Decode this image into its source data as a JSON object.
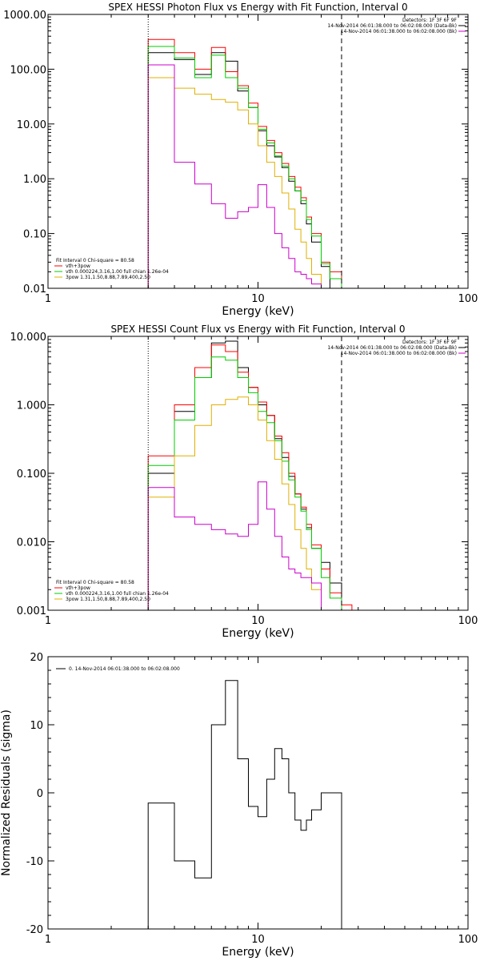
{
  "chart_data": [
    {
      "type": "line",
      "title": "SPEX HESSI Photon Flux vs Energy with Fit Function, Interval 0",
      "xlabel": "Energy (keV)",
      "ylabel": "",
      "xscale": "log",
      "yscale": "log",
      "xlim": [
        1,
        100
      ],
      "ylim": [
        0.01,
        1000
      ],
      "x_ticks": [
        "1",
        "10",
        "100"
      ],
      "y_ticks": [
        "0.01",
        "0.10",
        "1.00",
        "10.00",
        "100.00",
        "1000.00"
      ],
      "vlines": [
        {
          "x": 3,
          "style": "dotted"
        },
        {
          "x": 25,
          "style": "dashed"
        }
      ],
      "legend_header": [
        "Detectors: 1F 3F 6F 9F",
        "14-Nov-2014 06:01:38.000 to 06:02:08.000 (Data-Bk)",
        "14-Nov-2014 06:01:38.000 to 06:02:08.000 (Bk)"
      ],
      "legend_header_colors": [
        "#000000",
        "#000000",
        "#cc00cc"
      ],
      "legend_fit": [
        "Fit Interval 0   Chi-square = 80.58",
        "vth+3pow",
        "vth 0.000224,3.16,1.00   full chian 1.26e-04",
        "3pow 1.31,1.50,8.88,7.89,400,2.50"
      ],
      "legend_fit_colors": [
        "#000000",
        "#ff0000",
        "#00cc00",
        "#e0b000"
      ],
      "edges": [
        3,
        4,
        5,
        6,
        7,
        8,
        9,
        10,
        11,
        12,
        13,
        14,
        15,
        16,
        17,
        18,
        20,
        22,
        25,
        28
      ],
      "series": [
        {
          "color": "#000000",
          "values": [
            200,
            150,
            80,
            200,
            140,
            40,
            20,
            7.5,
            4,
            2.5,
            1.6,
            0.9,
            0.6,
            0.35,
            0.15,
            0.07,
            0.025,
            null,
            null
          ]
        },
        {
          "color": "#ff0000",
          "values": [
            350,
            200,
            100,
            250,
            90,
            50,
            24,
            9,
            5,
            3,
            1.9,
            1.1,
            0.7,
            0.45,
            0.2,
            0.1,
            0.03,
            0.02,
            null
          ]
        },
        {
          "color": "#00cc00",
          "values": [
            260,
            160,
            70,
            180,
            70,
            45,
            20,
            8,
            4.5,
            2.6,
            1.7,
            1.0,
            0.6,
            0.4,
            0.18,
            0.09,
            0.028,
            0.015,
            null
          ]
        },
        {
          "color": "#e0b000",
          "values": [
            70,
            45,
            35,
            28,
            25,
            18,
            10,
            4,
            2,
            1.1,
            0.55,
            0.28,
            0.12,
            0.07,
            0.035,
            0.018,
            0.01,
            null,
            null
          ]
        },
        {
          "color": "#cc00cc",
          "values": [
            120,
            2,
            0.8,
            0.35,
            0.19,
            0.25,
            0.3,
            0.78,
            0.3,
            0.1,
            0.055,
            0.035,
            0.02,
            0.018,
            0.015,
            0.012,
            null,
            null,
            null
          ]
        }
      ]
    },
    {
      "type": "line",
      "title": "SPEX HESSI Count Flux vs Energy with Fit Function, Interval 0",
      "xlabel": "Energy (keV)",
      "ylabel": "",
      "xscale": "log",
      "yscale": "log",
      "xlim": [
        1,
        100
      ],
      "ylim": [
        0.001,
        10
      ],
      "x_ticks": [
        "1",
        "10",
        "100"
      ],
      "y_ticks": [
        "0.001",
        "0.010",
        "0.100",
        "1.000",
        "10.000"
      ],
      "vlines": [
        {
          "x": 3,
          "style": "dotted"
        },
        {
          "x": 25,
          "style": "dashed"
        }
      ],
      "legend_header": [
        "Detectors: 1F 3F 6F 9F",
        "14-Nov-2014 06:01:38.000 to 06:02:08.000 (Data-Bk)",
        "14-Nov-2014 06:01:38.000 to 06:02:08.000 (Bk)"
      ],
      "legend_header_colors": [
        "#000000",
        "#000000",
        "#cc00cc"
      ],
      "legend_fit": [
        "Fit Interval 0   Chi-square = 80.58",
        "vth+3pow",
        "vth 0.000224,3.16,1.00   full chian 1.26e-04",
        "3pow 1.31,1.50,8.88,7.89,400,2.50"
      ],
      "legend_fit_colors": [
        "#000000",
        "#ff0000",
        "#00cc00",
        "#e0b000"
      ],
      "edges": [
        3,
        4,
        5,
        6,
        7,
        8,
        9,
        10,
        11,
        12,
        13,
        14,
        15,
        16,
        17,
        18,
        20,
        22,
        25,
        28
      ],
      "series": [
        {
          "color": "#000000",
          "values": [
            0.1,
            0.8,
            2.5,
            8,
            8.5,
            3.5,
            1.8,
            1.0,
            0.7,
            0.32,
            0.17,
            0.09,
            0.05,
            0.03,
            0.016,
            0.008,
            0.005,
            0.0025,
            null
          ]
        },
        {
          "color": "#ff0000",
          "values": [
            0.18,
            1.0,
            3.5,
            7.5,
            6,
            3,
            1.8,
            1.1,
            0.7,
            0.35,
            0.2,
            0.1,
            0.05,
            0.032,
            0.018,
            0.009,
            0.004,
            0.0018,
            0.0012
          ]
        },
        {
          "color": "#00cc00",
          "values": [
            0.13,
            0.6,
            2.5,
            5,
            4.5,
            2.5,
            1.5,
            0.8,
            0.55,
            0.3,
            0.15,
            0.08,
            0.045,
            0.028,
            0.015,
            0.008,
            0.003,
            0.0015,
            0.001
          ]
        },
        {
          "color": "#e0b000",
          "values": [
            0.045,
            0.18,
            0.5,
            1.0,
            1.2,
            1.3,
            1.0,
            0.6,
            0.3,
            0.16,
            0.07,
            0.035,
            0.015,
            0.008,
            0.004,
            0.002,
            0.001,
            null,
            null
          ]
        },
        {
          "color": "#cc00cc",
          "values": [
            0.062,
            0.023,
            0.018,
            0.015,
            0.013,
            0.012,
            0.018,
            0.075,
            0.03,
            0.012,
            0.006,
            0.004,
            0.0035,
            0.003,
            0.003,
            0.0025,
            null,
            null,
            null
          ]
        }
      ]
    },
    {
      "type": "line",
      "title": "",
      "xlabel": "Energy (keV)",
      "ylabel": "Normalized Residuals (sigma)",
      "xscale": "log",
      "yscale": "linear",
      "xlim": [
        1,
        100
      ],
      "ylim": [
        -20,
        20
      ],
      "x_ticks": [
        "1",
        "10",
        "100"
      ],
      "y_ticks": [
        "-20",
        "-10",
        "0",
        "10",
        "20"
      ],
      "legend": [
        "0. 14-Nov-2014 06:01:38.000 to 06:02:08.000"
      ],
      "edges": [
        3,
        4,
        5,
        6,
        7,
        8,
        9,
        10,
        11,
        12,
        13,
        14,
        15,
        16,
        17,
        18,
        20,
        22,
        25
      ],
      "series": [
        {
          "color": "#000000",
          "values": [
            -1.5,
            -10,
            -12.5,
            10,
            16.5,
            5,
            -2,
            -3.5,
            2,
            6.5,
            5,
            0,
            -4,
            -5.5,
            -4,
            -2.5,
            0,
            0
          ]
        }
      ],
      "residual_values": [
        -1.5,
        -10,
        -12.5,
        10,
        16.5,
        5,
        -2,
        -3.5,
        2,
        6.5,
        5,
        0,
        -4,
        -5.5,
        -4,
        -2.5
      ]
    }
  ]
}
